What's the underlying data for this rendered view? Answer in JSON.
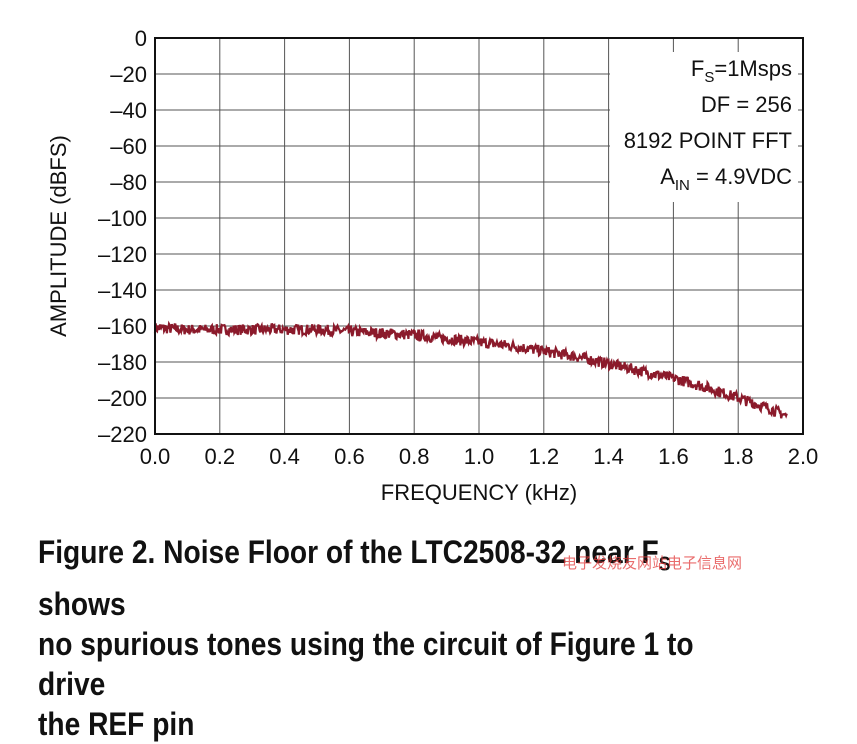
{
  "chart_data": {
    "type": "line",
    "title": "",
    "xlabel": "FREQUENCY (kHz)",
    "ylabel": "AMPLITUDE (dBFS)",
    "xlim": [
      0,
      2.0
    ],
    "ylim": [
      -220,
      0
    ],
    "x_ticks": [
      "0.0",
      "0.2",
      "0.4",
      "0.6",
      "0.8",
      "1.0",
      "1.2",
      "1.4",
      "1.6",
      "1.8",
      "2.0"
    ],
    "y_ticks": [
      "0",
      "–20",
      "–40",
      "–60",
      "–80",
      "–100",
      "–120",
      "–140",
      "–160",
      "–180",
      "–200",
      "–220"
    ],
    "grid": true,
    "series": [
      {
        "color": "#8b1a2b",
        "x": [
          0.0,
          0.1,
          0.2,
          0.3,
          0.4,
          0.5,
          0.6,
          0.7,
          0.8,
          0.9,
          1.0,
          1.1,
          1.2,
          1.3,
          1.4,
          1.5,
          1.6,
          1.7,
          1.8,
          1.9,
          1.95
        ],
        "values": [
          -161,
          -162,
          -162,
          -162,
          -162,
          -162,
          -163,
          -164,
          -165,
          -167,
          -169,
          -171,
          -174,
          -177,
          -181,
          -185,
          -189,
          -194,
          -200,
          -206,
          -210
        ]
      }
    ],
    "annotations": {
      "fs_main": "F",
      "fs_sub": "S",
      "fs_rest": "=1Msps",
      "df": "DF = 256",
      "fft": "8192 POINT FFT",
      "ain_main": "A",
      "ain_sub": "IN",
      "ain_rest": " = 4.9VDC"
    }
  },
  "caption": {
    "line1_a": "Figure 2. Noise Floor of the LTC2508-32 near F",
    "line1_sub": "S",
    "line1_b": " shows",
    "line2": "no spurious tones using the circuit of Figure 1 to drive",
    "line3": "the REF pin"
  },
  "watermark": "电子发烧友网站电子信息网"
}
